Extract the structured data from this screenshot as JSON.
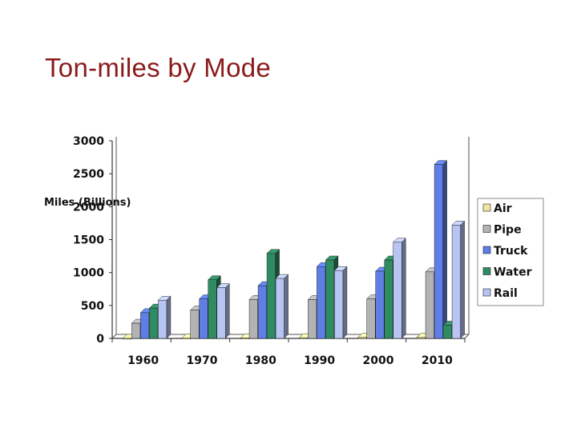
{
  "slide": {
    "title": "Ton-miles by Mode"
  },
  "chart_data": {
    "type": "bar",
    "title": "",
    "xlabel": "",
    "ylabel": "Miles (Billions)",
    "ylim": [
      0,
      3000
    ],
    "yticks": [
      0,
      500,
      1000,
      1500,
      2000,
      2500,
      3000
    ],
    "categories": [
      "1960",
      "1970",
      "1980",
      "1990",
      "2000",
      "2010"
    ],
    "series": [
      {
        "name": "Air",
        "color": "#f2e3a0",
        "values": [
          1,
          3,
          5,
          10,
          15,
          15
        ]
      },
      {
        "name": "Pipe",
        "color": "#b3b3b3",
        "values": [
          230,
          430,
          590,
          590,
          600,
          1010
        ]
      },
      {
        "name": "Truck",
        "color": "#5f7fe6",
        "values": [
          390,
          600,
          800,
          1090,
          1020,
          2640
        ]
      },
      {
        "name": "Water",
        "color": "#2e8b62",
        "values": [
          460,
          890,
          1290,
          1190,
          1190,
          200
        ]
      },
      {
        "name": "Rail",
        "color": "#b8c4f2",
        "values": [
          580,
          770,
          910,
          1030,
          1460,
          1720
        ]
      }
    ],
    "legend_order": [
      "Air",
      "Pipe",
      "Truck",
      "Water",
      "Rail"
    ],
    "legend_position": "right",
    "grid": false,
    "style": "3d"
  }
}
